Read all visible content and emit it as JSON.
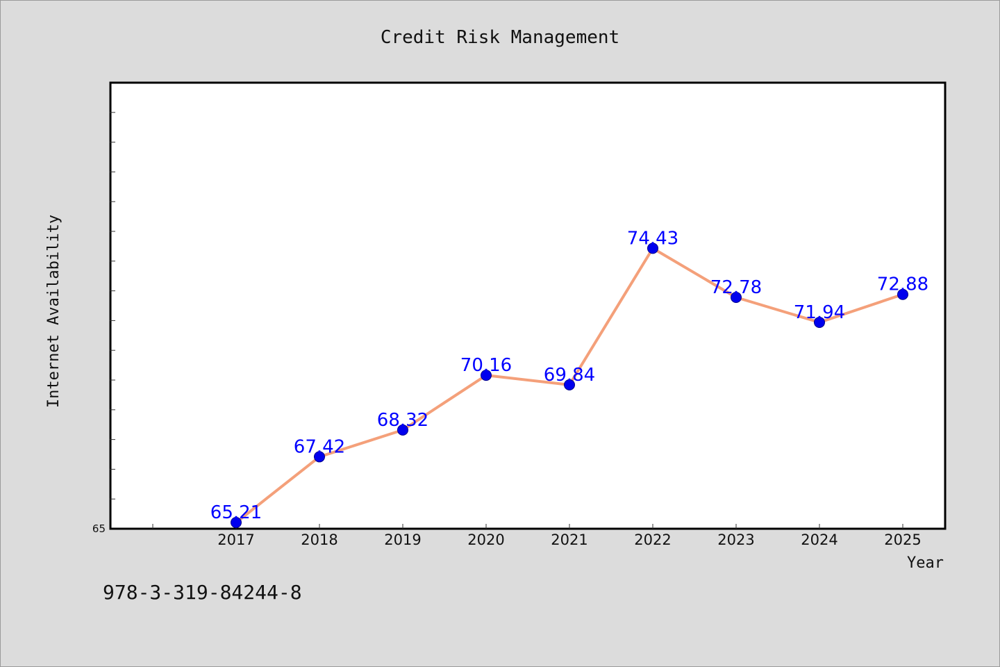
{
  "chart_data": {
    "type": "line",
    "title": "Credit Risk Management",
    "xlabel": "Year",
    "ylabel": "Internet Availability",
    "categories": [
      "2017",
      "2018",
      "2019",
      "2020",
      "2021",
      "2022",
      "2023",
      "2024",
      "2025"
    ],
    "series": [
      {
        "values": [
          65.21,
          67.42,
          68.32,
          70.16,
          69.84,
          74.43,
          72.78,
          71.94,
          72.88
        ],
        "labels": [
          "65.21",
          "67.42",
          "68.32",
          "70.16",
          "69.84",
          "74.43",
          "72.78",
          "71.94",
          "72.88"
        ]
      }
    ],
    "ylim": [
      65,
      80
    ],
    "ytick_labels": [
      "65"
    ],
    "grid": false,
    "colors": {
      "line": "#f4a07a",
      "marker": "#0000ee",
      "marker_edge": "#00008b",
      "data_label": "#0000ff",
      "plot_background": "#ffffff",
      "figure_background": "#dcdcdc"
    }
  },
  "footer": {
    "text": "978-3-319-84244-8"
  }
}
